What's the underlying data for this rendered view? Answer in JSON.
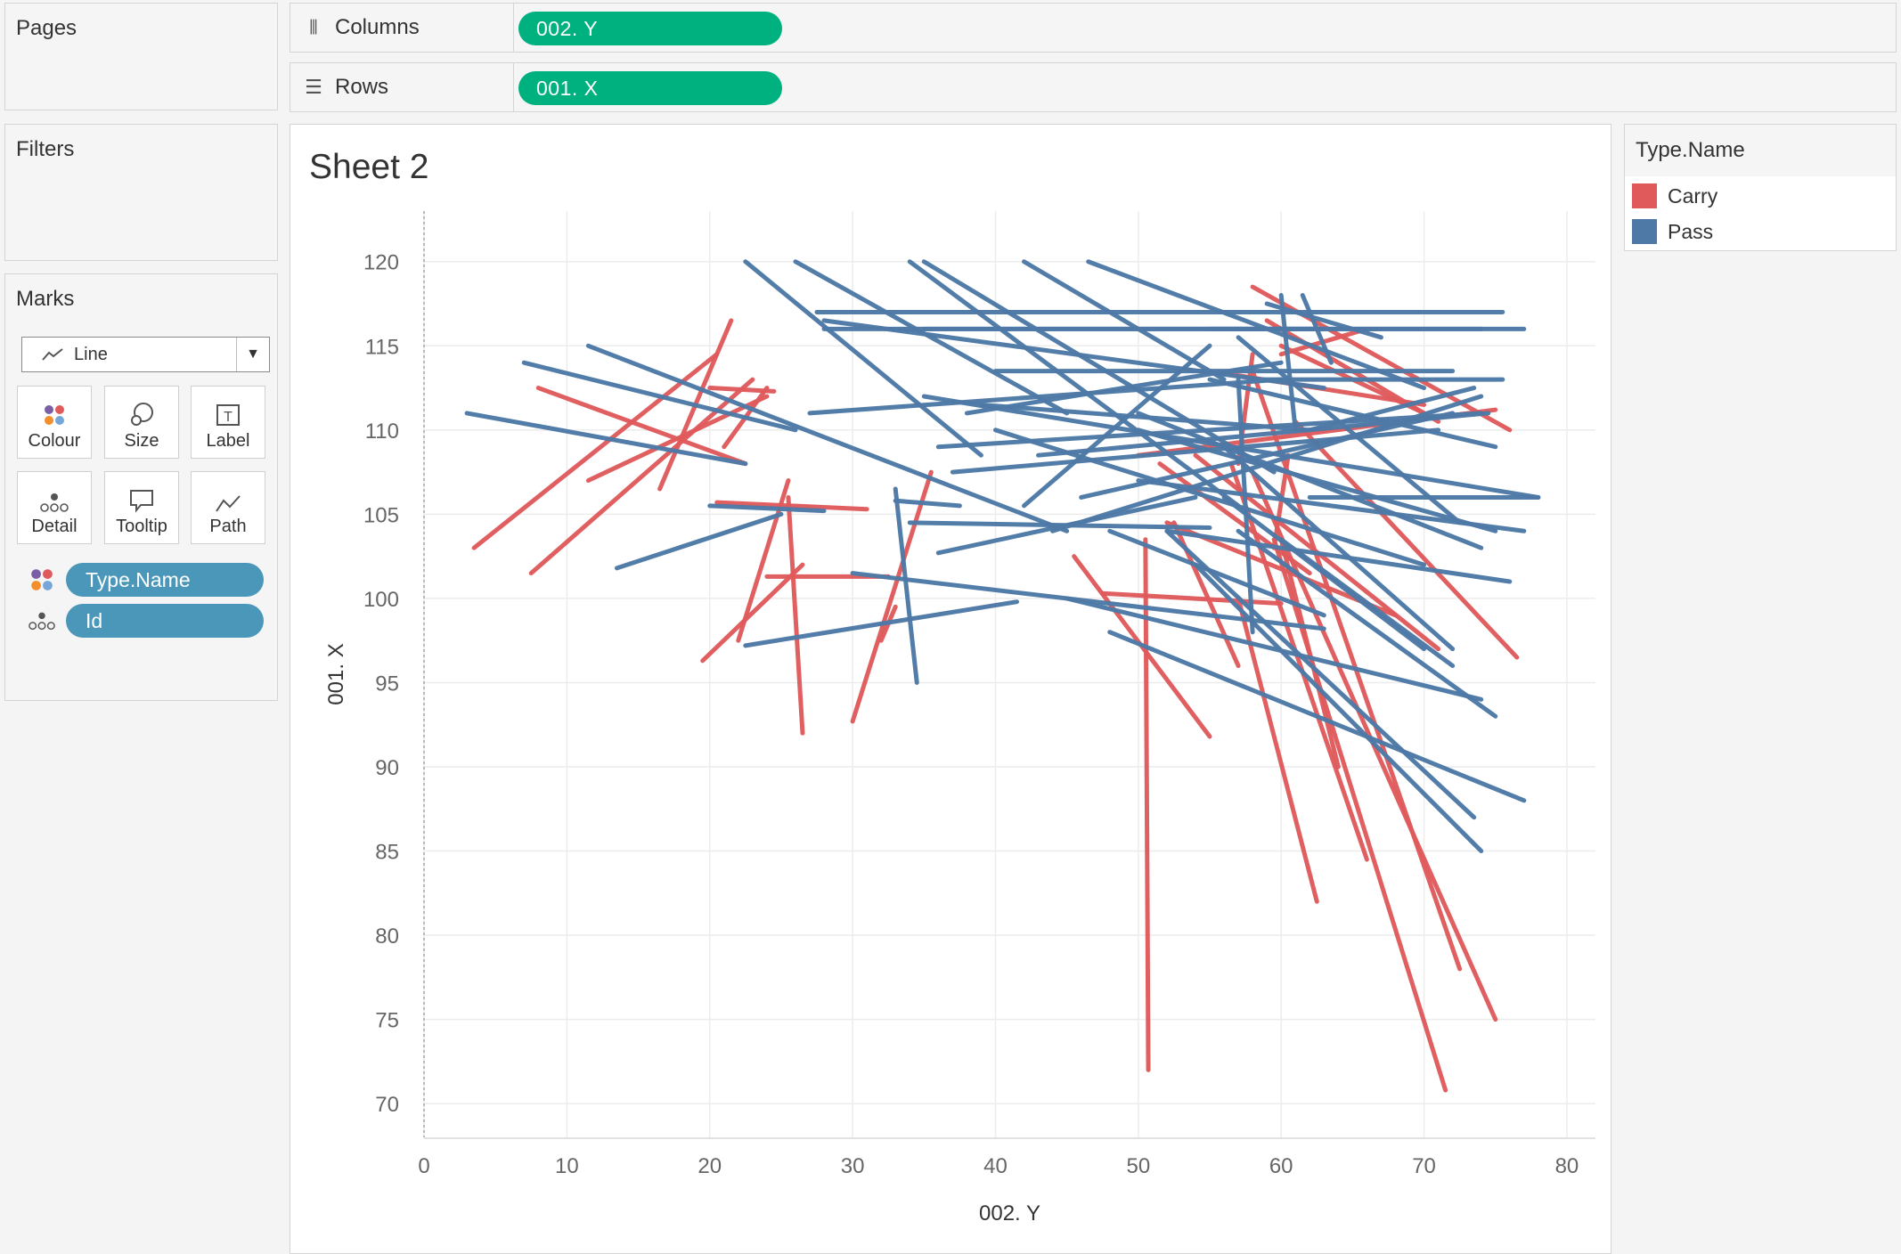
{
  "pages": {
    "title": "Pages"
  },
  "filters": {
    "title": "Filters"
  },
  "columns_shelf": {
    "label": "Columns",
    "icon": "columns-icon",
    "pill": "002. Y"
  },
  "rows_shelf": {
    "label": "Rows",
    "icon": "rows-icon",
    "pill": "001. X"
  },
  "marks": {
    "title": "Marks",
    "type": "Line",
    "buttons": [
      {
        "label": "Colour",
        "icon": "colour-icon"
      },
      {
        "label": "Size",
        "icon": "size-icon"
      },
      {
        "label": "Label",
        "icon": "label-icon"
      },
      {
        "label": "Detail",
        "icon": "detail-icon"
      },
      {
        "label": "Tooltip",
        "icon": "tooltip-icon"
      },
      {
        "label": "Path",
        "icon": "path-icon"
      }
    ],
    "fields": [
      {
        "name": "Type.Name",
        "encoding": "colour"
      },
      {
        "name": "Id",
        "encoding": "detail"
      }
    ]
  },
  "sheet": {
    "title": "Sheet 2"
  },
  "legend": {
    "title": "Type.Name",
    "items": [
      {
        "label": "Carry",
        "color": "#e05a5c"
      },
      {
        "label": "Pass",
        "color": "#4e79a7"
      }
    ]
  },
  "chart_data": {
    "type": "line",
    "xlabel": "002. Y",
    "ylabel": "001. X",
    "xlim": [
      0,
      82
    ],
    "ylim": [
      68,
      123
    ],
    "xticks": [
      0,
      10,
      20,
      30,
      40,
      50,
      60,
      70,
      80
    ],
    "yticks": [
      70,
      75,
      80,
      85,
      90,
      95,
      100,
      105,
      110,
      115,
      120
    ],
    "grid": true,
    "legend_position": "right",
    "series": [
      {
        "name": "Carry",
        "color": "#e05a5c",
        "segments": [
          [
            3.5,
            103,
            20.5,
            114.5
          ],
          [
            8,
            112.5,
            22.5,
            108
          ],
          [
            7.5,
            101.5,
            23,
            113
          ],
          [
            11.5,
            107,
            24,
            112
          ],
          [
            16.5,
            106.5,
            21.5,
            116.5
          ],
          [
            21,
            109,
            24,
            112.5
          ],
          [
            20,
            112.5,
            24.5,
            112.3
          ],
          [
            20.5,
            105.7,
            31,
            105.3
          ],
          [
            19.5,
            96.3,
            26.5,
            102
          ],
          [
            22,
            97.5,
            25.5,
            107
          ],
          [
            24,
            101.3,
            32.5,
            101.3
          ],
          [
            25.5,
            106,
            26.5,
            92
          ],
          [
            30,
            92.7,
            35.5,
            107.5
          ],
          [
            32,
            97.5,
            33,
            99.5
          ],
          [
            45.5,
            102.5,
            55,
            91.8
          ],
          [
            47.5,
            100.3,
            60,
            99.7
          ],
          [
            50.5,
            103.5,
            50.7,
            72
          ],
          [
            52.5,
            104.5,
            57,
            96
          ],
          [
            54,
            108.5,
            71,
            97
          ],
          [
            57,
            108,
            58,
            114.5
          ],
          [
            57,
            100,
            62.5,
            82
          ],
          [
            58,
            107.5,
            75,
            75
          ],
          [
            59.5,
            103.5,
            71.5,
            70.8
          ],
          [
            58,
            113.5,
            72.5,
            78
          ],
          [
            56.5,
            108,
            66,
            84.5
          ],
          [
            60,
            103.5,
            64,
            90
          ],
          [
            59.5,
            103,
            60.5,
            108.5
          ],
          [
            60,
            115,
            70,
            111
          ],
          [
            59,
            116.5,
            71,
            110.5
          ],
          [
            58,
            118.5,
            76,
            110
          ],
          [
            61,
            110.5,
            76.5,
            96.5
          ],
          [
            50,
            108.5,
            75,
            111.2
          ],
          [
            60,
            114.5,
            66,
            116
          ],
          [
            55,
            113.5,
            70,
            111.5
          ],
          [
            51.5,
            108,
            62,
            101.5
          ],
          [
            52,
            104.5,
            68,
            99
          ]
        ]
      },
      {
        "name": "Pass",
        "color": "#4e79a7",
        "segments": [
          [
            3,
            111,
            22.5,
            108
          ],
          [
            7,
            114,
            26,
            110
          ],
          [
            11.5,
            115,
            45,
            104
          ],
          [
            13.5,
            101.8,
            25,
            105
          ],
          [
            20,
            105.5,
            28,
            105.2
          ],
          [
            22.5,
            97.2,
            41.5,
            99.8
          ],
          [
            30,
            101.5,
            63,
            98.2
          ],
          [
            33,
            105.8,
            37.5,
            105.5
          ],
          [
            33,
            106.5,
            34.5,
            95
          ],
          [
            22.5,
            120,
            39,
            108.5
          ],
          [
            26,
            120,
            45,
            111
          ],
          [
            27.5,
            117,
            75.5,
            117
          ],
          [
            28,
            116.5,
            63,
            112.5
          ],
          [
            28,
            116,
            63,
            116
          ],
          [
            27,
            111,
            60,
            113
          ],
          [
            35,
            116,
            74,
            116
          ],
          [
            34,
            120,
            57,
            105.5
          ],
          [
            35,
            120,
            59.5,
            107.5
          ],
          [
            42,
            120,
            56,
            113
          ],
          [
            46.5,
            120,
            70,
            112.5
          ],
          [
            35,
            112,
            78,
            106
          ],
          [
            36,
            109,
            74,
            111
          ],
          [
            37,
            107.5,
            71,
            110
          ],
          [
            38,
            111,
            60,
            114
          ],
          [
            40,
            113.5,
            72,
            113.5
          ],
          [
            40,
            110,
            70,
            102
          ],
          [
            42,
            105.5,
            55,
            115
          ],
          [
            44,
            104,
            74,
            112
          ],
          [
            46,
            106,
            72,
            111
          ],
          [
            50,
            110,
            75,
            104
          ],
          [
            50,
            111,
            74,
            103
          ],
          [
            55,
            113,
            75,
            109
          ],
          [
            58,
            113,
            75.5,
            113
          ],
          [
            55,
            116,
            77,
            116
          ],
          [
            57,
            115.5,
            72.5,
            104.5
          ],
          [
            56,
            109,
            72,
            97
          ],
          [
            50,
            107,
            77,
            104
          ],
          [
            52,
            104,
            76,
            101
          ],
          [
            45,
            100,
            74,
            94
          ],
          [
            48,
            98,
            77,
            88
          ],
          [
            54,
            102,
            74,
            85
          ],
          [
            52,
            104,
            73.5,
            87
          ],
          [
            56,
            106,
            70,
            97
          ],
          [
            57,
            104,
            75,
            93
          ],
          [
            60,
            103.5,
            72,
            96
          ],
          [
            62,
            106,
            78,
            106
          ],
          [
            57,
            113,
            58,
            98
          ],
          [
            60,
            118,
            61,
            110
          ],
          [
            62,
            110,
            73.5,
            112.5
          ],
          [
            48,
            104,
            63,
            99
          ],
          [
            43,
            108.5,
            74.5,
            111
          ],
          [
            61.5,
            118,
            63.5,
            114
          ],
          [
            59,
            117.5,
            67,
            115.5
          ],
          [
            39,
            111.5,
            62,
            110
          ],
          [
            34,
            104.5,
            55,
            104.2
          ],
          [
            36,
            102.7,
            54,
            106
          ]
        ]
      }
    ]
  }
}
